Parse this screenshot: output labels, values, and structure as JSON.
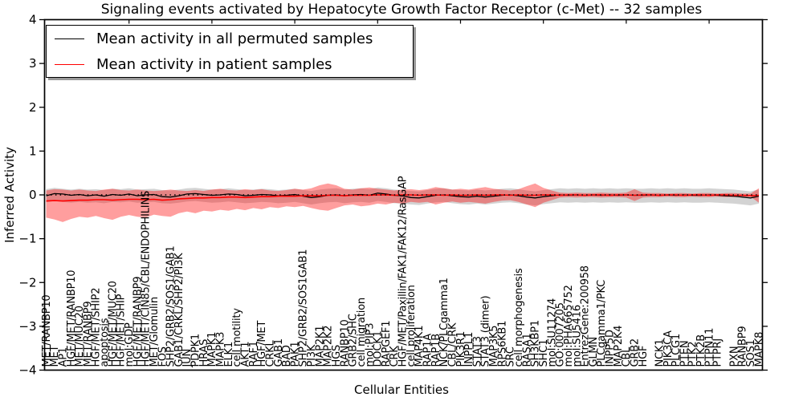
{
  "title": "Signaling events activated by Hepatocyte Growth Factor Receptor (c-Met) -- 32 samples",
  "axes": {
    "x_label": "Cellular Entities",
    "y_label": "Inferred Activity",
    "y_ticks": [
      {
        "value": 4,
        "label": "4"
      },
      {
        "value": 3,
        "label": "3"
      },
      {
        "value": 2,
        "label": "2"
      },
      {
        "value": 1,
        "label": "1"
      },
      {
        "value": 0,
        "label": "0"
      },
      {
        "value": -1,
        "label": "−1"
      },
      {
        "value": -2,
        "label": "−2"
      },
      {
        "value": -3,
        "label": "−3"
      },
      {
        "value": -4,
        "label": "−4"
      }
    ]
  },
  "legend": {
    "items": [
      {
        "label": "Mean activity in all permuted samples",
        "color": "#000000"
      },
      {
        "label": "Mean activity in patient samples",
        "color": "#ff0000"
      }
    ]
  },
  "colors": {
    "frame": "#000000",
    "background": "#ffffff",
    "permuted_line": "#000000",
    "patient_line": "#ff0000",
    "permuted_band": "#808080",
    "patient_band": "#ff0000"
  },
  "chart_data": {
    "type": "line",
    "title": "Signaling events activated by Hepatocyte Growth Factor Receptor (c-Met) -- 32 samples",
    "xlabel": "Cellular Entities",
    "ylabel": "Inferred Activity",
    "ylim": [
      -4,
      4
    ],
    "grid": false,
    "legend_position": "upper left",
    "zero_line": {
      "style": "dotted",
      "color": "#000000",
      "y": 0
    },
    "categories": [
      "MET/RANBP10",
      "MET",
      "AP1",
      "HGF/MET/RANBP10",
      "MET/MUC20",
      "MET/RANBP9",
      "HGF/MET/SHIP2",
      "apoptosis",
      "HGF/MET/MUC20",
      "HGF/MET/SHIP",
      "mol:GDP",
      "HGF/MET/RANBP9",
      "HGF/MET/CIN85/CBL/ENDOPHILINS",
      "MET/Glomulin",
      "FOS",
      "SHP2/GRB2/SOS1/GAB1",
      "GAB1/CRKL/SHP2/PI3K",
      "JUN",
      "PDPK1",
      "HRAS",
      "MAPK1",
      "MAPK3",
      "ELK1",
      "cell motility",
      "AKT1",
      "RAF1",
      "HGF/MET",
      "CRKL",
      "GAB1",
      "BAD",
      "PAK1",
      "SHP2/GRB2/SOS1GAB1",
      "PI3K",
      "MAP2K1",
      "MAP2K2",
      "HGS",
      "RANBP10",
      "GRB2/SHC",
      "cell migration",
      "mol:PIP3",
      "DOCK1",
      "RAPGEF1",
      "CRK",
      "HGF/MET/Paxillin/FAK1/FAK12/RasGAP",
      "cell proliferation",
      "MAP4K1",
      "RAP1A",
      "RAP1B",
      "NCK/PLCgamma1",
      "CBL/CRK",
      "PIK3R1",
      "INPPL1",
      "STAT3",
      "STAT3 (dimer)",
      "MAP3K5",
      "RPS6KB1",
      "SRC",
      "cell morphogenesis",
      "RASA1",
      "SH3KBP1",
      "SHC1",
      "mol:SU11274",
      "GO:0007205",
      "mol:PHA665752",
      "mol:SU5416",
      "EntrezGene:200958",
      "GLMN",
      "PLCgamma1/PKC",
      "INPP5D",
      "MAP2K4",
      "CBL",
      "GRB2",
      "HGF",
      "",
      "NCK1",
      "PIK3CA",
      "PLCG1",
      "PTEN",
      "PTK2",
      "PTK2B",
      "PTPN11",
      "PTPRJ",
      "",
      "PXN",
      "RANBP9",
      "SOS1",
      "MAPK8"
    ],
    "series": [
      {
        "name": "Permuted std band",
        "band": true,
        "color": "#808080",
        "opacity": 0.35,
        "upper": [
          0.13,
          0.16,
          0.14,
          0.12,
          0.14,
          0.12,
          0.13,
          0.11,
          0.14,
          0.13,
          0.15,
          0.12,
          0.13,
          0.14,
          0.11,
          0.1,
          0.12,
          0.15,
          0.16,
          0.14,
          0.12,
          0.13,
          0.15,
          0.13,
          0.11,
          0.12,
          0.14,
          0.13,
          0.11,
          0.12,
          0.14,
          0.11,
          0.09,
          0.12,
          0.14,
          0.15,
          0.12,
          0.14,
          0.15,
          0.13,
          0.17,
          0.15,
          0.12,
          0.11,
          0.09,
          0.08,
          0.11,
          0.14,
          0.15,
          0.12,
          0.11,
          0.1,
          0.12,
          0.1,
          0.12,
          0.14,
          0.15,
          0.13,
          0.1,
          0.08,
          0.11,
          0.13,
          0.15,
          0.14,
          0.15,
          0.14,
          0.15,
          0.14,
          0.15,
          0.14,
          0.15,
          0.14,
          0.14,
          0.15,
          0.14,
          0.15,
          0.14,
          0.15,
          0.14,
          0.14,
          0.15,
          0.14,
          0.13,
          0.12,
          0.1,
          0.08,
          0.12
        ],
        "lower": [
          -0.17,
          -0.14,
          -0.16,
          -0.18,
          -0.16,
          -0.18,
          -0.17,
          -0.19,
          -0.16,
          -0.17,
          -0.15,
          -0.18,
          -0.17,
          -0.16,
          -0.19,
          -0.2,
          -0.18,
          -0.15,
          -0.14,
          -0.16,
          -0.18,
          -0.17,
          -0.15,
          -0.17,
          -0.19,
          -0.18,
          -0.16,
          -0.17,
          -0.19,
          -0.18,
          -0.16,
          -0.19,
          -0.22,
          -0.19,
          -0.17,
          -0.16,
          -0.19,
          -0.17,
          -0.16,
          -0.18,
          -0.14,
          -0.16,
          -0.19,
          -0.2,
          -0.22,
          -0.23,
          -0.2,
          -0.17,
          -0.16,
          -0.19,
          -0.21,
          -0.22,
          -0.2,
          -0.22,
          -0.2,
          -0.18,
          -0.17,
          -0.19,
          -0.22,
          -0.24,
          -0.21,
          -0.19,
          -0.17,
          -0.18,
          -0.17,
          -0.18,
          -0.17,
          -0.18,
          -0.17,
          -0.18,
          -0.17,
          -0.18,
          -0.18,
          -0.17,
          -0.18,
          -0.17,
          -0.18,
          -0.17,
          -0.18,
          -0.18,
          -0.17,
          -0.18,
          -0.19,
          -0.2,
          -0.22,
          -0.24,
          -0.2
        ]
      },
      {
        "name": "Patient std band",
        "band": true,
        "color": "#ff0000",
        "opacity": 0.38,
        "upper": [
          0.1,
          0.13,
          0.12,
          0.1,
          0.12,
          0.1,
          0.09,
          0.12,
          0.14,
          0.11,
          0.1,
          0.12,
          0.1,
          0.09,
          0.1,
          0.12,
          0.1,
          0.09,
          0.11,
          0.09,
          0.12,
          0.14,
          0.11,
          0.1,
          0.13,
          0.11,
          0.13,
          0.1,
          0.09,
          0.11,
          0.14,
          0.12,
          0.15,
          0.22,
          0.26,
          0.22,
          0.14,
          0.12,
          0.15,
          0.17,
          0.14,
          0.12,
          0.1,
          0.12,
          0.13,
          0.11,
          0.13,
          0.18,
          0.15,
          0.12,
          0.14,
          0.12,
          0.15,
          0.18,
          0.14,
          0.12,
          0.1,
          0.13,
          0.2,
          0.26,
          0.16,
          0.1,
          0.05,
          0.04,
          0.05,
          0.04,
          0.04,
          0.05,
          0.04,
          0.04,
          0.05,
          0.13,
          0.05,
          0.04,
          0.04,
          0.03,
          0.04,
          0.04,
          0.03,
          0.04,
          0.04,
          0.03,
          0.04,
          0.04,
          0.03,
          0.03,
          0.15
        ],
        "lower": [
          -0.52,
          -0.56,
          -0.62,
          -0.55,
          -0.5,
          -0.52,
          -0.48,
          -0.53,
          -0.57,
          -0.5,
          -0.46,
          -0.5,
          -0.52,
          -0.45,
          -0.48,
          -0.5,
          -0.42,
          -0.38,
          -0.42,
          -0.36,
          -0.38,
          -0.34,
          -0.36,
          -0.32,
          -0.35,
          -0.3,
          -0.33,
          -0.28,
          -0.3,
          -0.26,
          -0.28,
          -0.25,
          -0.3,
          -0.34,
          -0.36,
          -0.3,
          -0.24,
          -0.22,
          -0.26,
          -0.24,
          -0.2,
          -0.22,
          -0.18,
          -0.2,
          -0.16,
          -0.18,
          -0.16,
          -0.22,
          -0.18,
          -0.15,
          -0.18,
          -0.16,
          -0.18,
          -0.2,
          -0.16,
          -0.13,
          -0.12,
          -0.16,
          -0.22,
          -0.28,
          -0.18,
          -0.12,
          -0.06,
          -0.05,
          -0.06,
          -0.05,
          -0.05,
          -0.06,
          -0.05,
          -0.05,
          -0.06,
          -0.14,
          -0.06,
          -0.05,
          -0.05,
          -0.04,
          -0.05,
          -0.05,
          -0.04,
          -0.05,
          -0.05,
          -0.04,
          -0.05,
          -0.05,
          -0.04,
          -0.04,
          -0.18
        ]
      },
      {
        "name": "Mean activity in all permuted samples",
        "color": "#000000",
        "width": 1.3,
        "values": [
          -0.02,
          0.03,
          0.02,
          -0.01,
          0.01,
          -0.02,
          0,
          -0.03,
          0.01,
          -0.01,
          0.02,
          -0.02,
          0,
          0.01,
          -0.04,
          -0.05,
          -0.02,
          0.02,
          0.03,
          0.01,
          -0.01,
          0,
          0.02,
          0.01,
          -0.02,
          -0.01,
          0.01,
          0,
          -0.02,
          -0.01,
          0.01,
          -0.03,
          -0.06,
          -0.04,
          -0.01,
          0,
          -0.02,
          0,
          0.01,
          -0.01,
          0.04,
          0.02,
          -0.01,
          -0.02,
          -0.06,
          -0.07,
          -0.04,
          -0.01,
          0,
          -0.02,
          -0.04,
          -0.05,
          -0.03,
          -0.05,
          -0.03,
          -0.01,
          0,
          -0.02,
          -0.05,
          -0.07,
          -0.04,
          -0.02,
          0,
          -0.01,
          0,
          -0.01,
          0,
          -0.01,
          0,
          -0.01,
          0,
          -0.01,
          -0.01,
          0,
          -0.01,
          0,
          -0.01,
          0,
          -0.01,
          -0.01,
          0,
          -0.01,
          -0.02,
          -0.03,
          -0.05,
          -0.07,
          -0.03
        ]
      },
      {
        "name": "Mean activity in patient samples",
        "color": "#ff0000",
        "width": 1.6,
        "values": [
          -0.14,
          -0.13,
          -0.14,
          -0.13,
          -0.12,
          -0.12,
          -0.11,
          -0.11,
          -0.12,
          -0.11,
          -0.1,
          -0.1,
          -0.11,
          -0.1,
          -0.12,
          -0.11,
          -0.09,
          -0.08,
          -0.07,
          -0.07,
          -0.06,
          -0.06,
          -0.05,
          -0.05,
          -0.06,
          -0.05,
          -0.04,
          -0.04,
          -0.03,
          -0.03,
          -0.03,
          -0.02,
          -0.02,
          -0.02,
          -0.01,
          -0.01,
          -0.02,
          -0.01,
          -0.01,
          -0.01,
          0,
          0,
          -0.01,
          0,
          0,
          -0.01,
          0,
          0,
          -0.01,
          0,
          -0.01,
          -0.01,
          0,
          -0.01,
          0,
          0,
          -0.01,
          0,
          -0.01,
          -0.01,
          0,
          0,
          -0.01,
          0,
          0,
          -0.01,
          0,
          0,
          -0.01,
          0,
          0,
          -0.01,
          0,
          0,
          -0.01,
          0,
          0,
          -0.01,
          0,
          0,
          -0.01,
          0,
          0,
          -0.01,
          -0.01,
          -0.02,
          -0.01
        ]
      }
    ]
  }
}
